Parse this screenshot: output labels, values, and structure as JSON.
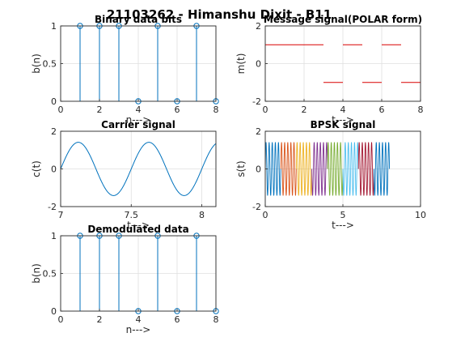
{
  "figure": {
    "suptitle": "21103262 - Himanshu Dixit - B11"
  },
  "colors": {
    "stem": "#0072BD",
    "message": "#D90000",
    "carrier": "#0072BD",
    "bpsk": [
      "#0072BD",
      "#D95319",
      "#EDB120",
      "#7E2F8E",
      "#77AC30",
      "#4DBEEE",
      "#A2142F"
    ],
    "grid": "#dfdfdf",
    "axis": "#262626"
  },
  "chart_data": [
    {
      "id": "binary",
      "type": "stem",
      "title": "Binary data bits",
      "xlabel": "n--->",
      "ylabel": "b(n)",
      "xlim": [
        0,
        8
      ],
      "ylim": [
        0,
        1
      ],
      "xticks": [
        0,
        2,
        4,
        6,
        8
      ],
      "yticks": [
        0,
        0.5,
        1
      ],
      "x": [
        1,
        2,
        3,
        4,
        5,
        6,
        7,
        8
      ],
      "values": [
        1,
        1,
        1,
        0,
        1,
        0,
        1,
        0
      ],
      "grid": true
    },
    {
      "id": "message",
      "type": "line",
      "title": "Message signal(POLAR form)",
      "xlabel": "t--->",
      "ylabel": "m(t)",
      "xlim": [
        0,
        8
      ],
      "ylim": [
        -2,
        2
      ],
      "xticks": [
        0,
        2,
        4,
        6,
        8
      ],
      "yticks": [
        -2,
        0,
        2
      ],
      "segments": [
        {
          "x": [
            0,
            3
          ],
          "value": 1
        },
        {
          "x": [
            3,
            4
          ],
          "value": -1
        },
        {
          "x": [
            4,
            5
          ],
          "value": 1
        },
        {
          "x": [
            5,
            6
          ],
          "value": -1
        },
        {
          "x": [
            6,
            7
          ],
          "value": 1
        },
        {
          "x": [
            7,
            8
          ],
          "value": -1
        }
      ],
      "grid": true
    },
    {
      "id": "carrier",
      "type": "line",
      "title": "Carrier signal",
      "xlabel": "t--->",
      "ylabel": "c(t)",
      "xlim": [
        7,
        8.1
      ],
      "ylim": [
        -2,
        2
      ],
      "xticks": [
        7,
        7.5,
        8
      ],
      "yticks": [
        -2,
        0,
        2
      ],
      "amplitude": 1.414,
      "frequency": 2,
      "t_range": [
        7,
        8.1
      ],
      "grid": true
    },
    {
      "id": "bpsk",
      "type": "line",
      "title": "BPSK signal",
      "xlabel": "t--->",
      "ylabel": "s(t)",
      "xlim": [
        0,
        10
      ],
      "ylim": [
        -2,
        2
      ],
      "xticks": [
        0,
        5,
        10
      ],
      "yticks": [
        -2,
        0,
        2
      ],
      "amplitude": 1.414,
      "frequency": 2,
      "t_range": [
        0,
        8
      ],
      "bits": [
        1,
        1,
        1,
        0,
        1,
        0,
        1,
        0
      ],
      "grid": true
    },
    {
      "id": "demod",
      "type": "stem",
      "title": "Demodulated data",
      "xlabel": "n--->",
      "ylabel": "b(n)",
      "xlim": [
        0,
        8
      ],
      "ylim": [
        0,
        1
      ],
      "xticks": [
        0,
        2,
        4,
        6,
        8
      ],
      "yticks": [
        0,
        0.5,
        1
      ],
      "x": [
        1,
        2,
        3,
        4,
        5,
        6,
        7,
        8
      ],
      "values": [
        1,
        1,
        1,
        0,
        1,
        0,
        1,
        0
      ],
      "grid": true
    }
  ]
}
